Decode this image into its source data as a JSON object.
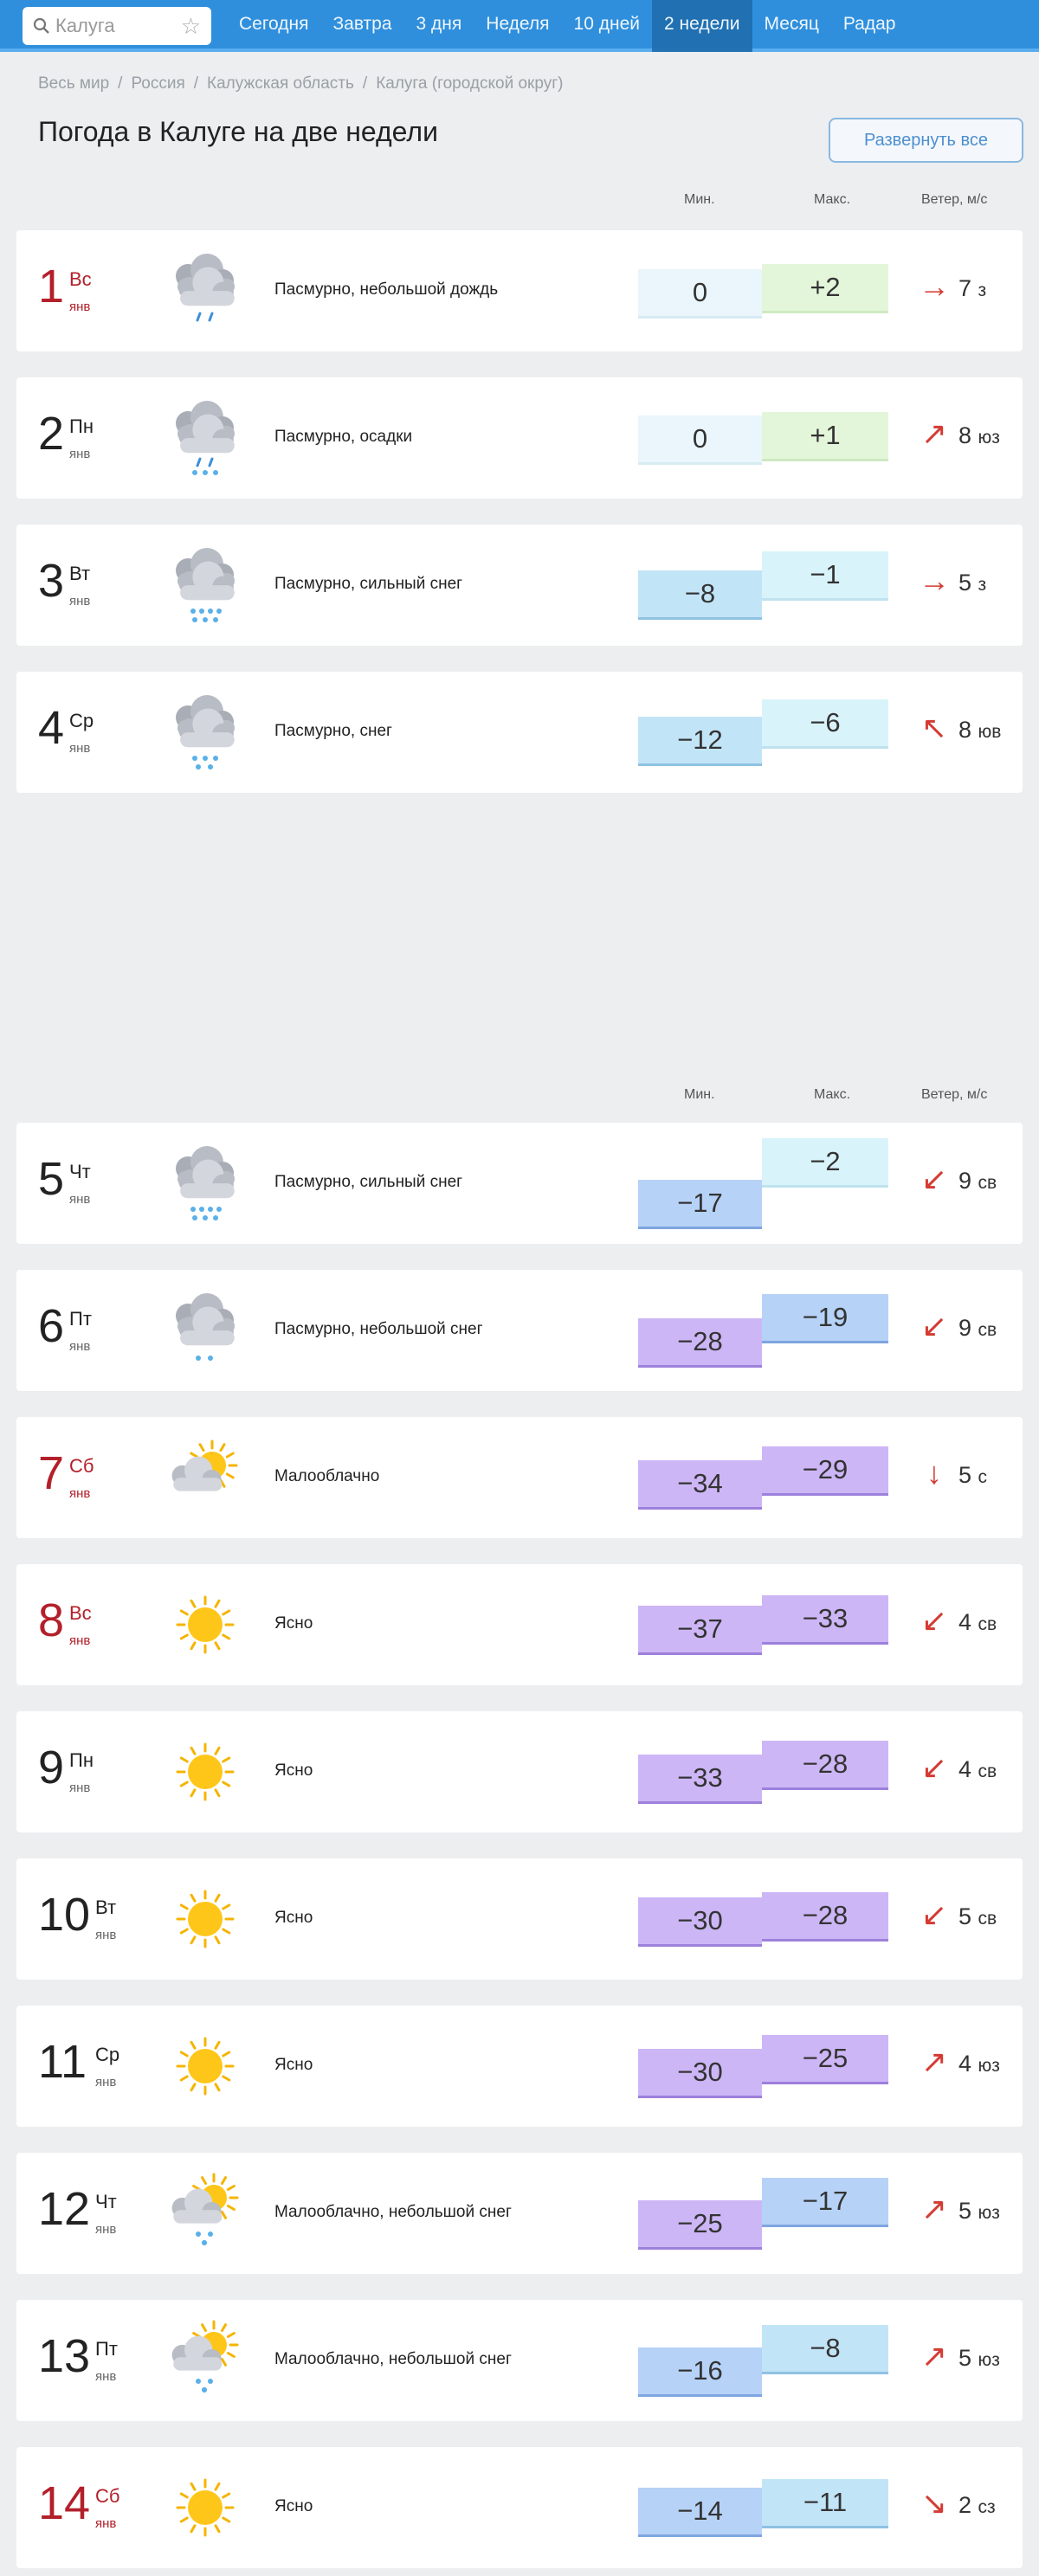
{
  "search": {
    "value": "Калуга",
    "icon": "search-icon",
    "favorite_icon": "star-icon"
  },
  "nav": {
    "tabs": [
      "Сегодня",
      "Завтра",
      "3 дня",
      "Неделя",
      "10 дней",
      "2 недели",
      "Месяц",
      "Радар"
    ],
    "active": "2 недели"
  },
  "breadcrumb": [
    "Весь мир",
    "Россия",
    "Калужская область",
    "Калуга (городской округ)"
  ],
  "title": "Погода в Калуге на две недели",
  "expand_label": "Развернуть все",
  "columns": {
    "min": "Мин.",
    "max": "Макс.",
    "wind": "Ветер, м/с"
  },
  "colors": {
    "nav": "#2f8fdc",
    "weekend": "#b3202a",
    "wind_arrow": "#d33b33"
  },
  "days": [
    {
      "num": "1",
      "dow": "Вс",
      "mon": "янв",
      "weekend": true,
      "icon": "cloud-rain",
      "desc": "Пасмурно, небольшой дождь",
      "min": "0",
      "max": "+2",
      "wind_arrow": "→",
      "wind_speed": "7",
      "wind_dir": "з"
    },
    {
      "num": "2",
      "dow": "Пн",
      "mon": "янв",
      "weekend": false,
      "icon": "cloud-sleet",
      "desc": "Пасмурно, осадки",
      "min": "0",
      "max": "+1",
      "wind_arrow": "↗",
      "wind_speed": "8",
      "wind_dir": "юз"
    },
    {
      "num": "3",
      "dow": "Вт",
      "mon": "янв",
      "weekend": false,
      "icon": "cloud-heavy-snow",
      "desc": "Пасмурно, сильный снег",
      "min": "−8",
      "max": "−1",
      "wind_arrow": "→",
      "wind_speed": "5",
      "wind_dir": "з"
    },
    {
      "num": "4",
      "dow": "Ср",
      "mon": "янв",
      "weekend": false,
      "icon": "cloud-snow",
      "desc": "Пасмурно, снег",
      "min": "−12",
      "max": "−6",
      "wind_arrow": "↖",
      "wind_speed": "8",
      "wind_dir": "юв"
    },
    {
      "num": "5",
      "dow": "Чт",
      "mon": "янв",
      "weekend": false,
      "icon": "cloud-heavy-snow",
      "desc": "Пасмурно, сильный снег",
      "min": "−17",
      "max": "−2",
      "wind_arrow": "↙",
      "wind_speed": "9",
      "wind_dir": "св"
    },
    {
      "num": "6",
      "dow": "Пт",
      "mon": "янв",
      "weekend": false,
      "icon": "cloud-light-snow",
      "desc": "Пасмурно, небольшой снег",
      "min": "−28",
      "max": "−19",
      "wind_arrow": "↙",
      "wind_speed": "9",
      "wind_dir": "св"
    },
    {
      "num": "7",
      "dow": "Сб",
      "mon": "янв",
      "weekend": true,
      "icon": "partly-cloudy",
      "desc": "Малооблачно",
      "min": "−34",
      "max": "−29",
      "wind_arrow": "↓",
      "wind_speed": "5",
      "wind_dir": "с"
    },
    {
      "num": "8",
      "dow": "Вс",
      "mon": "янв",
      "weekend": true,
      "icon": "sun",
      "desc": "Ясно",
      "min": "−37",
      "max": "−33",
      "wind_arrow": "↙",
      "wind_speed": "4",
      "wind_dir": "св"
    },
    {
      "num": "9",
      "dow": "Пн",
      "mon": "янв",
      "weekend": false,
      "icon": "sun",
      "desc": "Ясно",
      "min": "−33",
      "max": "−28",
      "wind_arrow": "↙",
      "wind_speed": "4",
      "wind_dir": "св"
    },
    {
      "num": "10",
      "dow": "Вт",
      "mon": "янв",
      "weekend": false,
      "icon": "sun",
      "desc": "Ясно",
      "min": "−30",
      "max": "−28",
      "wind_arrow": "↙",
      "wind_speed": "5",
      "wind_dir": "св"
    },
    {
      "num": "11",
      "dow": "Ср",
      "mon": "янв",
      "weekend": false,
      "icon": "sun",
      "desc": "Ясно",
      "min": "−30",
      "max": "−25",
      "wind_arrow": "↗",
      "wind_speed": "4",
      "wind_dir": "юз"
    },
    {
      "num": "12",
      "dow": "Чт",
      "mon": "янв",
      "weekend": false,
      "icon": "partly-cloudy-snow",
      "desc": "Малооблачно, небольшой снег",
      "min": "−25",
      "max": "−17",
      "wind_arrow": "↗",
      "wind_speed": "5",
      "wind_dir": "юз"
    },
    {
      "num": "13",
      "dow": "Пт",
      "mon": "янв",
      "weekend": false,
      "icon": "partly-cloudy-snow",
      "desc": "Малооблачно, небольшой снег",
      "min": "−16",
      "max": "−8",
      "wind_arrow": "↗",
      "wind_speed": "5",
      "wind_dir": "юз"
    },
    {
      "num": "14",
      "dow": "Сб",
      "mon": "янв",
      "weekend": true,
      "icon": "sun",
      "desc": "Ясно",
      "min": "−14",
      "max": "−11",
      "wind_arrow": "↘",
      "wind_speed": "2",
      "wind_dir": "сз"
    }
  ]
}
